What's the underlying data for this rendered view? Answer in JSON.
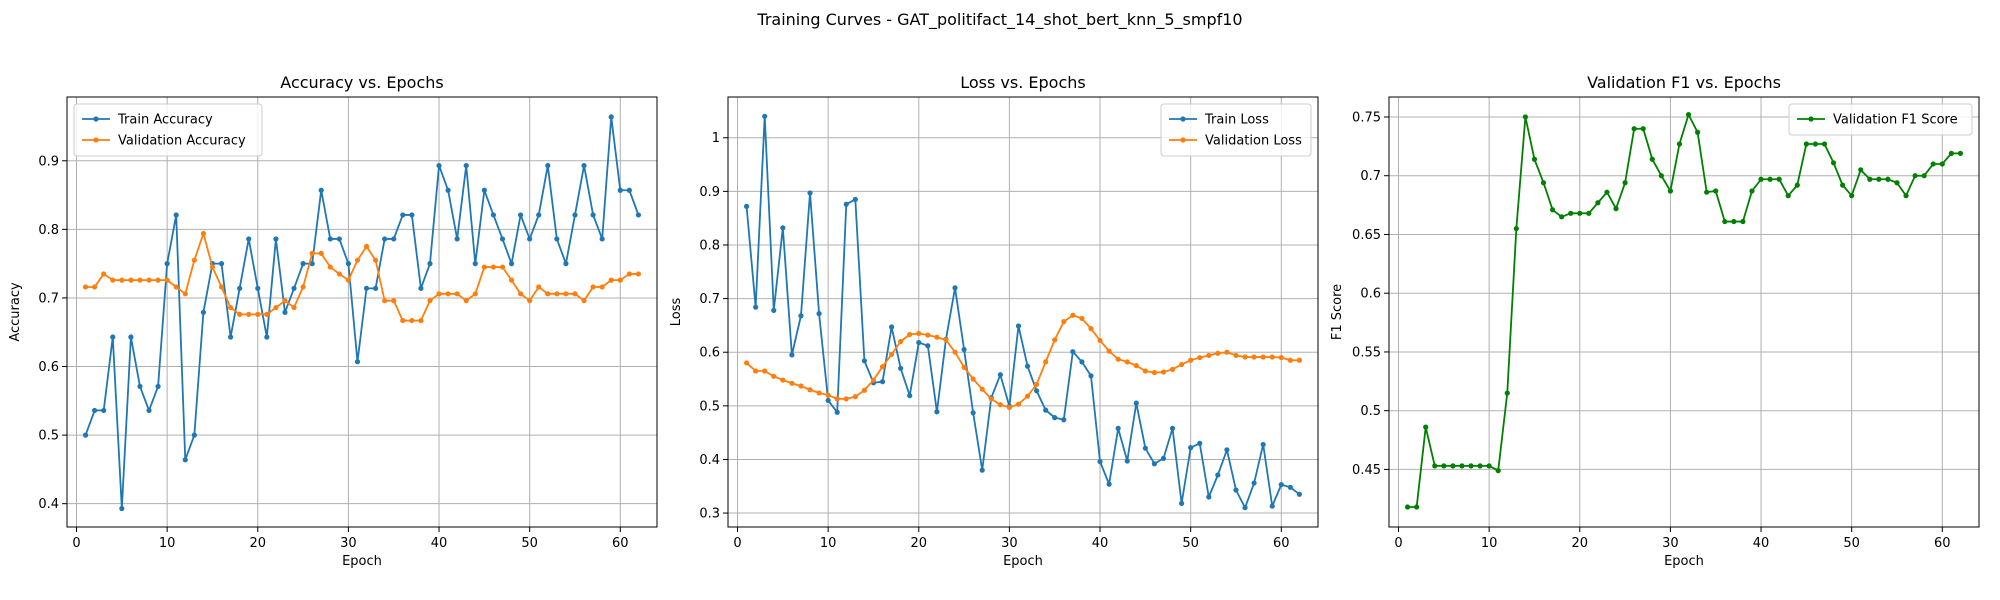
{
  "figure": {
    "suptitle": "Training Curves - GAT_politifact_14_shot_bert_knn_5_smpf10"
  },
  "colors": {
    "train": "#1f77b4",
    "validation": "#ff7f0e",
    "f1": "#008000",
    "grid": "#b0b0b0"
  },
  "chart_data": [
    {
      "type": "line",
      "title": "Accuracy vs. Epochs",
      "xlabel": "Epoch",
      "ylabel": "Accuracy",
      "xlim": [
        -1.05,
        64.05
      ],
      "ylim": [
        0.366,
        0.993
      ],
      "xticks": [
        0,
        10,
        20,
        30,
        40,
        50,
        60
      ],
      "yticks": [
        0.4,
        0.5,
        0.6,
        0.7,
        0.8,
        0.9
      ],
      "grid": true,
      "legend_loc": "upper left",
      "x": [
        1,
        2,
        3,
        4,
        5,
        6,
        7,
        8,
        9,
        10,
        11,
        12,
        13,
        14,
        15,
        16,
        17,
        18,
        19,
        20,
        21,
        22,
        23,
        24,
        25,
        26,
        27,
        28,
        29,
        30,
        31,
        32,
        33,
        34,
        35,
        36,
        37,
        38,
        39,
        40,
        41,
        42,
        43,
        44,
        45,
        46,
        47,
        48,
        49,
        50,
        51,
        52,
        53,
        54,
        55,
        56,
        57,
        58,
        59,
        60,
        61,
        62
      ],
      "series": [
        {
          "name": "Train Accuracy",
          "color_key": "train",
          "values": [
            0.5,
            0.536,
            0.536,
            0.643,
            0.393,
            0.643,
            0.571,
            0.536,
            0.571,
            0.75,
            0.821,
            0.464,
            0.5,
            0.679,
            0.75,
            0.75,
            0.643,
            0.714,
            0.786,
            0.714,
            0.643,
            0.786,
            0.679,
            0.714,
            0.75,
            0.75,
            0.857,
            0.786,
            0.786,
            0.75,
            0.607,
            0.714,
            0.714,
            0.786,
            0.786,
            0.821,
            0.821,
            0.714,
            0.75,
            0.893,
            0.857,
            0.786,
            0.893,
            0.75,
            0.857,
            0.821,
            0.786,
            0.75,
            0.821,
            0.786,
            0.821,
            0.893,
            0.786,
            0.75,
            0.821,
            0.893,
            0.821,
            0.786,
            0.964,
            0.857,
            0.857,
            0.821
          ]
        },
        {
          "name": "Validation Accuracy",
          "color_key": "validation",
          "values": [
            0.716,
            0.716,
            0.735,
            0.726,
            0.726,
            0.726,
            0.726,
            0.726,
            0.726,
            0.726,
            0.716,
            0.706,
            0.755,
            0.794,
            0.745,
            0.716,
            0.686,
            0.676,
            0.676,
            0.676,
            0.676,
            0.686,
            0.696,
            0.686,
            0.716,
            0.765,
            0.765,
            0.745,
            0.735,
            0.726,
            0.755,
            0.775,
            0.755,
            0.696,
            0.696,
            0.667,
            0.667,
            0.667,
            0.696,
            0.706,
            0.706,
            0.706,
            0.696,
            0.706,
            0.745,
            0.745,
            0.745,
            0.726,
            0.706,
            0.696,
            0.716,
            0.706,
            0.706,
            0.706,
            0.706,
            0.696,
            0.716,
            0.716,
            0.726,
            0.726,
            0.735,
            0.735
          ]
        }
      ]
    },
    {
      "type": "line",
      "title": "Loss vs. Epochs",
      "xlabel": "Epoch",
      "ylabel": "Loss",
      "xlim": [
        -1.05,
        64.05
      ],
      "ylim": [
        0.274,
        1.076
      ],
      "xticks": [
        0,
        10,
        20,
        30,
        40,
        50,
        60
      ],
      "yticks": [
        0.3,
        0.4,
        0.5,
        0.6,
        0.7,
        0.8,
        0.9,
        1.0
      ],
      "grid": true,
      "legend_loc": "upper right",
      "x": [
        1,
        2,
        3,
        4,
        5,
        6,
        7,
        8,
        9,
        10,
        11,
        12,
        13,
        14,
        15,
        16,
        17,
        18,
        19,
        20,
        21,
        22,
        23,
        24,
        25,
        26,
        27,
        28,
        29,
        30,
        31,
        32,
        33,
        34,
        35,
        36,
        37,
        38,
        39,
        40,
        41,
        42,
        43,
        44,
        45,
        46,
        47,
        48,
        49,
        50,
        51,
        52,
        53,
        54,
        55,
        56,
        57,
        58,
        59,
        60,
        61,
        62
      ],
      "series": [
        {
          "name": "Train Loss",
          "color_key": "train",
          "values": [
            0.872,
            0.684,
            1.04,
            0.678,
            0.832,
            0.595,
            0.668,
            0.897,
            0.672,
            0.51,
            0.488,
            0.876,
            0.885,
            0.584,
            0.543,
            0.545,
            0.647,
            0.57,
            0.519,
            0.618,
            0.612,
            0.489,
            0.624,
            0.72,
            0.605,
            0.487,
            0.38,
            0.515,
            0.558,
            0.499,
            0.649,
            0.574,
            0.528,
            0.492,
            0.478,
            0.474,
            0.601,
            0.582,
            0.556,
            0.396,
            0.354,
            0.458,
            0.397,
            0.505,
            0.421,
            0.392,
            0.402,
            0.458,
            0.318,
            0.422,
            0.43,
            0.33,
            0.371,
            0.418,
            0.343,
            0.31,
            0.356,
            0.428,
            0.313,
            0.353,
            0.348,
            0.335
          ]
        },
        {
          "name": "Validation Loss",
          "color_key": "validation",
          "values": [
            0.58,
            0.565,
            0.565,
            0.555,
            0.548,
            0.542,
            0.537,
            0.53,
            0.524,
            0.52,
            0.513,
            0.513,
            0.517,
            0.529,
            0.548,
            0.573,
            0.596,
            0.62,
            0.633,
            0.635,
            0.632,
            0.628,
            0.623,
            0.6,
            0.572,
            0.55,
            0.531,
            0.513,
            0.502,
            0.497,
            0.503,
            0.518,
            0.54,
            0.582,
            0.623,
            0.657,
            0.669,
            0.663,
            0.644,
            0.622,
            0.602,
            0.587,
            0.582,
            0.575,
            0.565,
            0.562,
            0.563,
            0.568,
            0.577,
            0.585,
            0.59,
            0.594,
            0.598,
            0.6,
            0.594,
            0.591,
            0.591,
            0.591,
            0.591,
            0.59,
            0.585,
            0.585
          ]
        }
      ]
    },
    {
      "type": "line",
      "title": "Validation F1 vs. Epochs",
      "xlabel": "Epoch",
      "ylabel": "F1 Score",
      "xlim": [
        -1.05,
        64.05
      ],
      "ylim": [
        0.401,
        0.767
      ],
      "xticks": [
        0,
        10,
        20,
        30,
        40,
        50,
        60
      ],
      "yticks": [
        0.45,
        0.5,
        0.55,
        0.6,
        0.65,
        0.7,
        0.75
      ],
      "grid": true,
      "legend_loc": "upper right",
      "x": [
        1,
        2,
        3,
        4,
        5,
        6,
        7,
        8,
        9,
        10,
        11,
        12,
        13,
        14,
        15,
        16,
        17,
        18,
        19,
        20,
        21,
        22,
        23,
        24,
        25,
        26,
        27,
        28,
        29,
        30,
        31,
        32,
        33,
        34,
        35,
        36,
        37,
        38,
        39,
        40,
        41,
        42,
        43,
        44,
        45,
        46,
        47,
        48,
        49,
        50,
        51,
        52,
        53,
        54,
        55,
        56,
        57,
        58,
        59,
        60,
        61,
        62
      ],
      "series": [
        {
          "name": "Validation F1 Score",
          "color_key": "f1",
          "values": [
            0.418,
            0.418,
            0.486,
            0.453,
            0.453,
            0.453,
            0.453,
            0.453,
            0.453,
            0.453,
            0.449,
            0.515,
            0.655,
            0.75,
            0.714,
            0.694,
            0.671,
            0.665,
            0.668,
            0.668,
            0.668,
            0.677,
            0.686,
            0.672,
            0.694,
            0.74,
            0.74,
            0.714,
            0.7,
            0.687,
            0.727,
            0.752,
            0.737,
            0.686,
            0.687,
            0.661,
            0.661,
            0.661,
            0.687,
            0.697,
            0.697,
            0.697,
            0.683,
            0.692,
            0.727,
            0.727,
            0.727,
            0.711,
            0.692,
            0.683,
            0.705,
            0.697,
            0.697,
            0.697,
            0.694,
            0.683,
            0.7,
            0.7,
            0.71,
            0.71,
            0.719,
            0.719
          ]
        }
      ]
    }
  ]
}
